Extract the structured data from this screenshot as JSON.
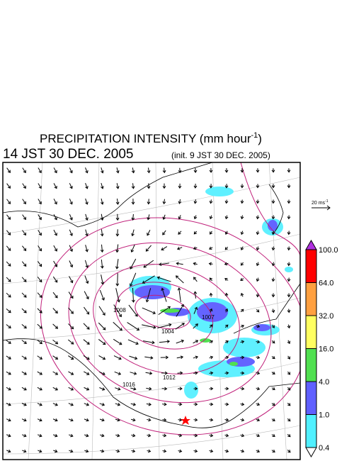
{
  "header": {
    "title": "PRECIPITATION INTENSITY (mm hour",
    "title_sup": "-1",
    "title_end": ")",
    "valid_time": "14 JST 30 DEC. 2005",
    "init_time": "(init. 9 JST 30 DEC. 2005)"
  },
  "wind_scale": {
    "label": "20 ms",
    "label_sup": "-1"
  },
  "colorbar": {
    "levels": [
      {
        "value": 100,
        "label": "100.0"
      },
      {
        "value": 64,
        "label": "64.0"
      },
      {
        "value": 32,
        "label": "32.0"
      },
      {
        "value": 16,
        "label": "16.0"
      },
      {
        "value": 4,
        "label": "4.0"
      },
      {
        "value": 1,
        "label": "1.0"
      },
      {
        "value": 0.4,
        "label": "0.4"
      }
    ],
    "colors": [
      "#b030e0",
      "#ff0000",
      "#ffa040",
      "#ffff60",
      "#50e050",
      "#6060ff",
      "#50f0ff",
      "#ffffff"
    ]
  },
  "map": {
    "isobar_labels": [
      "1004",
      "1007",
      "1008",
      "1012",
      "1016"
    ]
  }
}
